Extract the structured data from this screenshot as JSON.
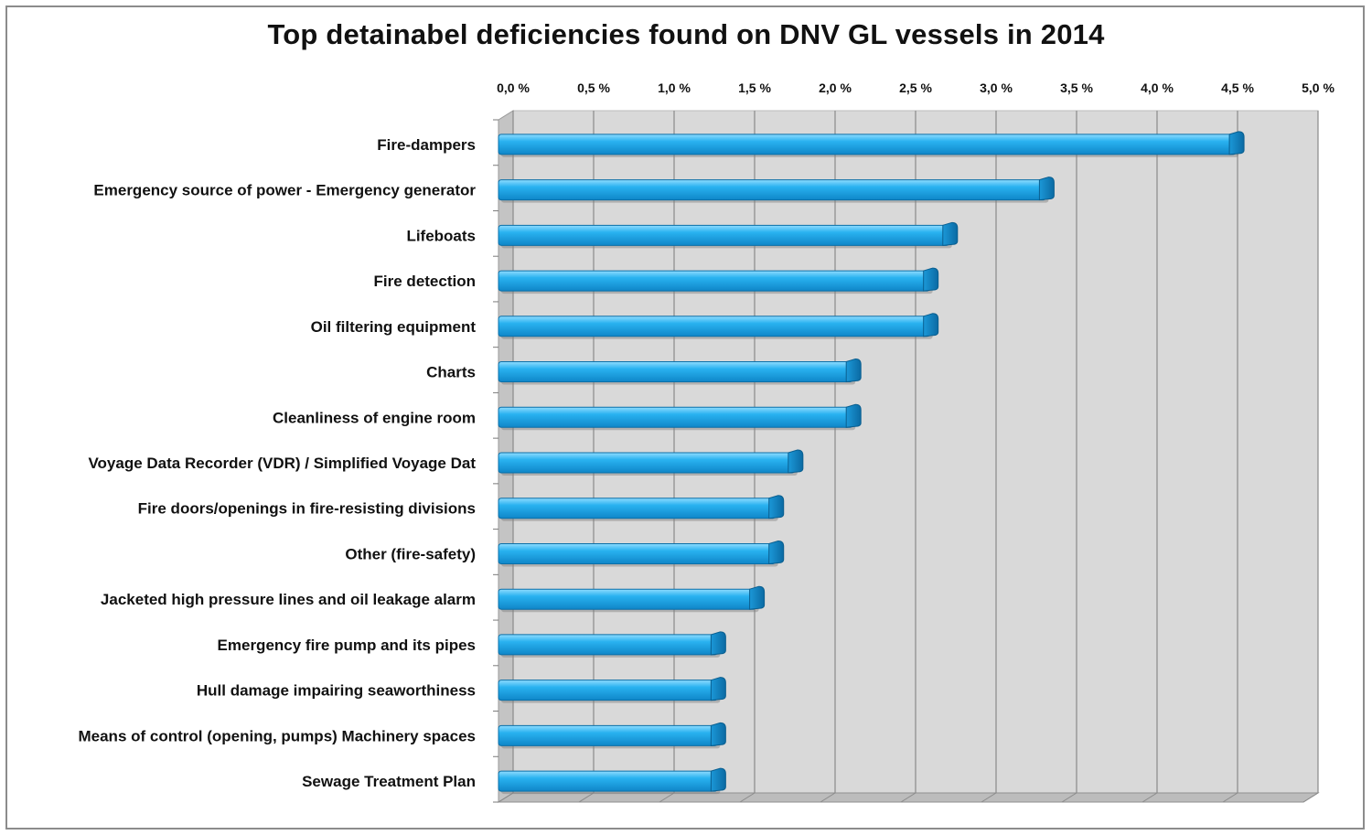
{
  "chart_data": {
    "type": "bar",
    "orientation": "horizontal",
    "title": "Top detainabel deficiencies found on DNV GL vessels in 2014",
    "xlabel": "",
    "ylabel": "",
    "xlim": [
      0,
      5
    ],
    "tick_values": [
      0,
      0.5,
      1,
      1.5,
      2,
      2.5,
      3,
      3.5,
      4,
      4.5,
      5
    ],
    "tick_labels": [
      "0,0 %",
      "0,5 %",
      "1,0 %",
      "1,5 %",
      "2,0 %",
      "2,5 %",
      "3,0 %",
      "3,5 %",
      "4,0 %",
      "4,5 %",
      "5,0 %"
    ],
    "grid": true,
    "bar_color": "#1aa7ec",
    "categories": [
      "Fire-dampers",
      "Emergency source of power - Emergency generator",
      "Lifeboats",
      "Fire detection",
      "Oil filtering equipment",
      "Charts",
      "Cleanliness of engine room",
      "Voyage Data Recorder (VDR) / Simplified Voyage Dat",
      "Fire doors/openings in fire-resisting divisions",
      "Other (fire-safety)",
      "Jacketed high pressure lines and oil leakage alarm",
      "Emergency fire pump and its pipes",
      "Hull damage impairing seaworthiness",
      "Means of control (opening, pumps) Machinery spaces",
      "Sewage Treatment Plan"
    ],
    "values": [
      4.58,
      3.4,
      2.8,
      2.68,
      2.68,
      2.2,
      2.2,
      1.84,
      1.72,
      1.72,
      1.6,
      1.36,
      1.36,
      1.36,
      1.36
    ]
  }
}
